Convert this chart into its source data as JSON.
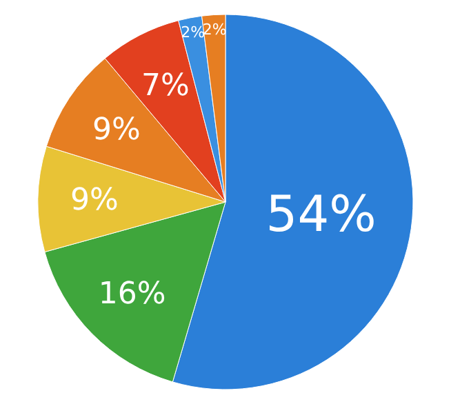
{
  "chart_data": {
    "type": "pie",
    "categories": [
      null,
      null,
      null,
      null,
      null,
      null,
      null
    ],
    "values": [
      54,
      16,
      9,
      9,
      7,
      2,
      2
    ],
    "colors": [
      "#2b7fd8",
      "#3fa63c",
      "#e8c336",
      "#e67e22",
      "#e2401f",
      "#3a8fe0",
      "#e67e22"
    ],
    "value_labels": [
      "54%",
      "16%",
      "9%",
      "9%",
      "7%",
      "2%",
      "2%"
    ]
  }
}
